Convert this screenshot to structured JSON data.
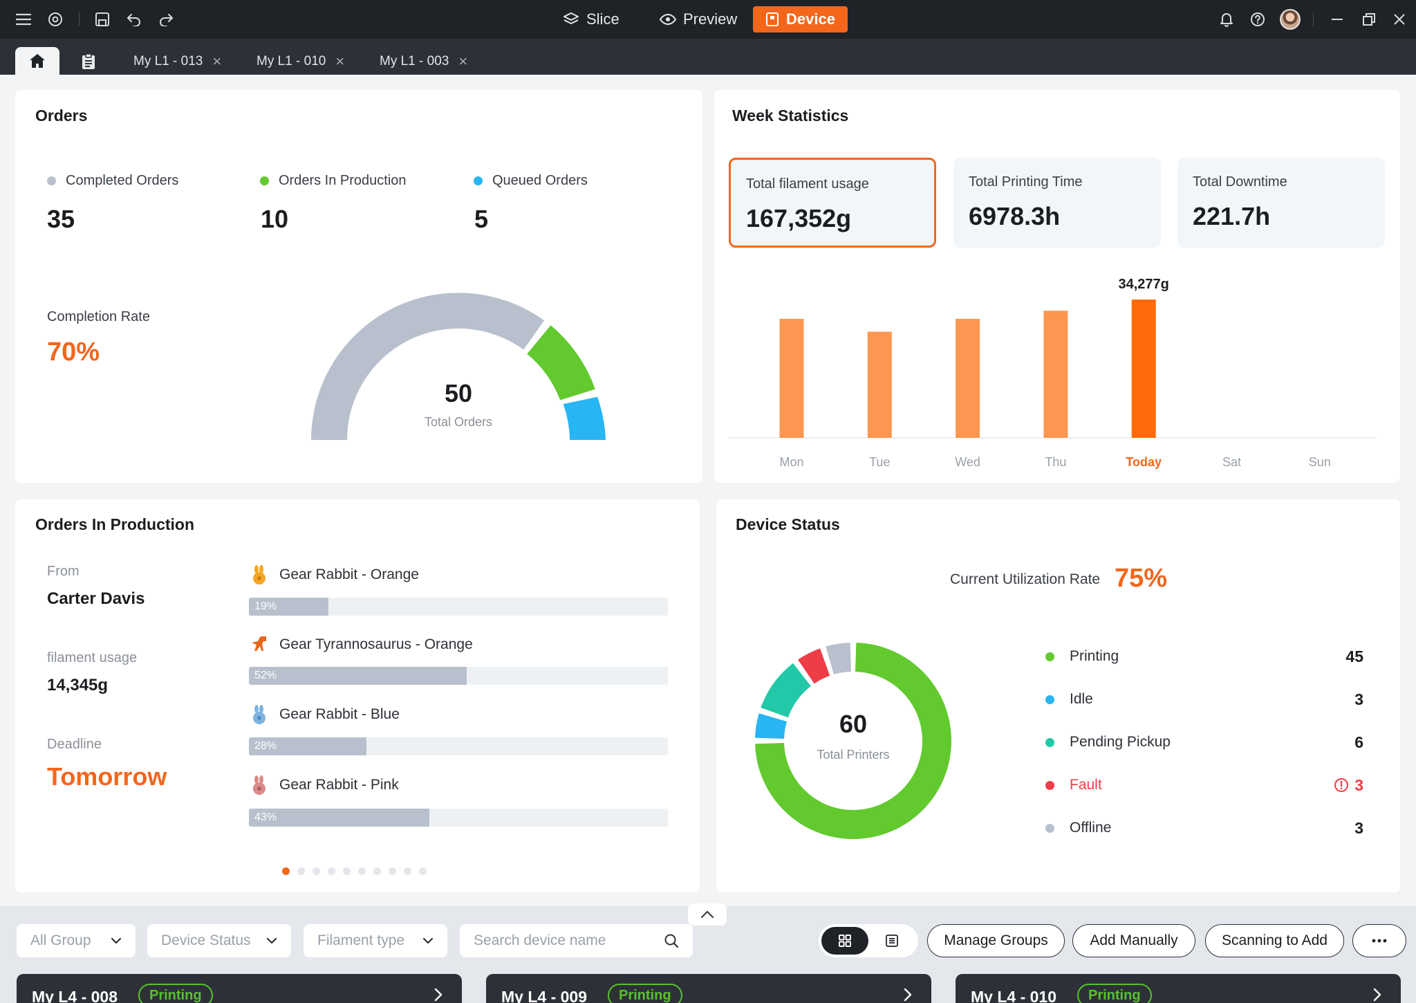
{
  "titlebar": {
    "modes": [
      {
        "label": "Slice",
        "icon": "layers-icon",
        "active": false
      },
      {
        "label": "Preview",
        "icon": "eye-icon",
        "active": false
      },
      {
        "label": "Device",
        "icon": "device-icon",
        "active": true
      }
    ],
    "accent_color": "#f3661c"
  },
  "tabs": [
    {
      "label": "My L1 - 013"
    },
    {
      "label": "My L1 - 010"
    },
    {
      "label": "My L1 - 003"
    }
  ],
  "orders": {
    "title": "Orders",
    "stats": [
      {
        "label": "Completed Orders",
        "value": "35",
        "color": "#b7c0cc"
      },
      {
        "label": "Orders In Production",
        "value": "10",
        "color": "#62c92e"
      },
      {
        "label": "Queued Orders",
        "value": "5",
        "color": "#27b5f3"
      }
    ],
    "completion_label": "Completion Rate",
    "completion_value": "70%",
    "total_value": "50",
    "total_label": "Total Orders"
  },
  "week": {
    "title": "Week Statistics",
    "stats": [
      {
        "label": "Total filament usage",
        "value": "167,352g"
      },
      {
        "label": "Total Printing Time",
        "value": "6978.3h"
      },
      {
        "label": "Total Downtime",
        "value": "221.7h"
      }
    ],
    "chart_data": {
      "type": "bar",
      "categories": [
        "Mon",
        "Tue",
        "Wed",
        "Thu",
        "Today",
        "Sat",
        "Sun"
      ],
      "values": [
        29500,
        26300,
        29500,
        31500,
        34277,
        null,
        null
      ],
      "highlight_label": "34,277g",
      "highlight_index": 4,
      "colors": {
        "normal": "#fd9650",
        "highlight": "#ff6a0a"
      }
    }
  },
  "production": {
    "title": "Orders In Production",
    "from_label": "From",
    "from_value": "Carter Davis",
    "usage_label": "filament usage",
    "usage_value": "14,345g",
    "deadline_label": "Deadline",
    "deadline_value": "Tomorrow",
    "items": [
      {
        "name": "Gear Rabbit - Orange",
        "progress": 19,
        "progress_label": "19%",
        "icon": "rabbit-icon",
        "color": "#f5a623"
      },
      {
        "name": "Gear Tyrannosaurus - Orange",
        "progress": 52,
        "progress_label": "52%",
        "icon": "dinosaur-icon",
        "color": "#e8651a"
      },
      {
        "name": "Gear Rabbit - Blue",
        "progress": 28,
        "progress_label": "28%",
        "icon": "rabbit-icon",
        "color": "#7fb5e0"
      },
      {
        "name": "Gear Rabbit - Pink",
        "progress": 43,
        "progress_label": "43%",
        "icon": "rabbit-icon",
        "color": "#d98a8a"
      }
    ],
    "pager_count": 10,
    "pager_active": 0
  },
  "device_status": {
    "title": "Device Status",
    "util_label": "Current Utilization Rate",
    "util_value": "75%",
    "total_value": "60",
    "total_label": "Total Printers",
    "legend": [
      {
        "label": "Printing",
        "value": "45",
        "color": "#62c92e",
        "warn": false
      },
      {
        "label": "Idle",
        "value": "3",
        "color": "#27b5f3",
        "warn": false
      },
      {
        "label": "Pending Pickup",
        "value": "6",
        "color": "#22c8a7",
        "warn": false
      },
      {
        "label": "Fault",
        "value": "3",
        "color": "#ef3d48",
        "warn": true
      },
      {
        "label": "Offline",
        "value": "3",
        "color": "#b7c0cc",
        "warn": false
      }
    ]
  },
  "toolbar": {
    "group_select": "All Group",
    "status_select": "Device Status",
    "filament_select": "Filament type",
    "search_placeholder": "Search device name",
    "manage_groups": "Manage Groups",
    "add_manually": "Add Manually",
    "scan_add": "Scanning to Add"
  },
  "devices": [
    {
      "name": "My L4 - 008",
      "status": "Printing"
    },
    {
      "name": "My L4 - 009",
      "status": "Printing"
    },
    {
      "name": "My L4 - 010",
      "status": "Printing"
    }
  ]
}
